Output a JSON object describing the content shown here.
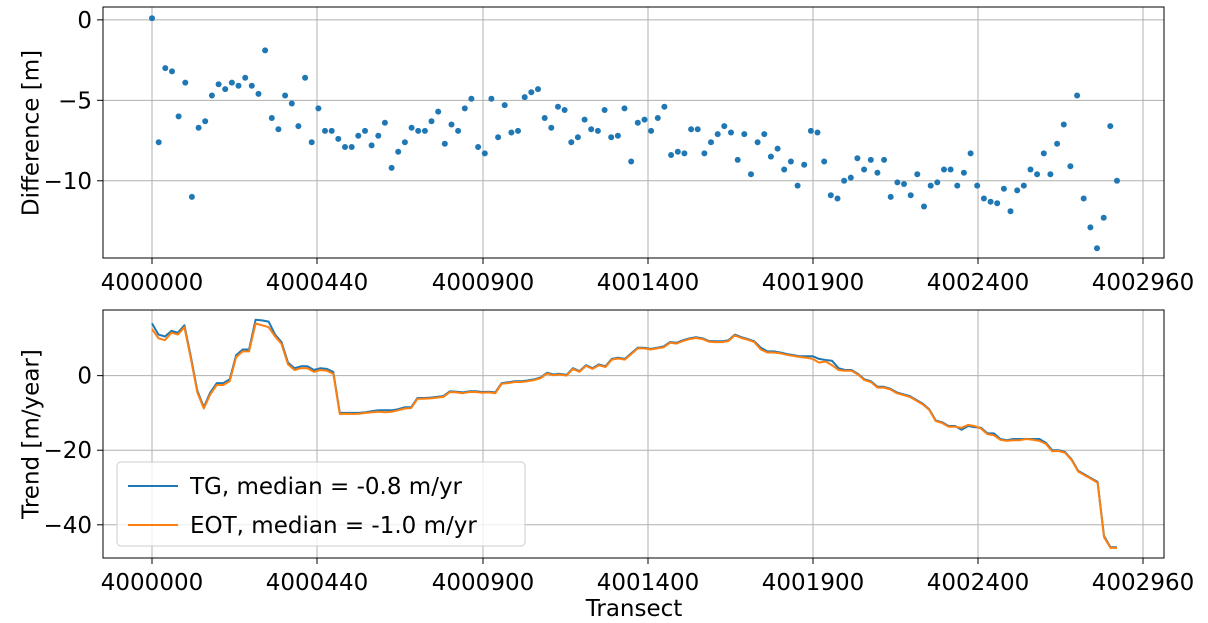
{
  "chart_data": [
    {
      "type": "scatter",
      "xlabel": "",
      "ylabel": "Difference [m]",
      "x_ticks": [
        "4000000",
        "4000440",
        "4000900",
        "4001400",
        "4001900",
        "4002400",
        "4002960"
      ],
      "y_ticks": [
        0,
        -5,
        -10
      ],
      "y_tick_labels": [
        "0",
        "−5",
        "−10"
      ],
      "xlim": [
        0,
        147
      ],
      "ylim": [
        -14.8,
        0.8
      ],
      "grid": true,
      "color": "#1f77b4",
      "series": [
        {
          "values": [
            0.1,
            -7.6,
            -3.0,
            -3.2,
            -6.0,
            -3.9,
            -11.0,
            -6.7,
            -6.3,
            -4.7,
            -4.0,
            -4.3,
            -3.9,
            -4.1,
            -3.6,
            -4.1,
            -4.6,
            -1.9,
            -6.1,
            -6.8,
            -4.7,
            -5.2,
            -6.6,
            -3.6,
            -7.6,
            -5.5,
            -6.9,
            -6.9,
            -7.4,
            -7.9,
            -7.9,
            -7.2,
            -6.9,
            -7.8,
            -7.2,
            -6.4,
            -9.2,
            -8.2,
            -7.6,
            -6.7,
            -6.9,
            -6.9,
            -6.3,
            -5.7,
            -7.7,
            -6.5,
            -6.9,
            -5.5,
            -4.9,
            -7.9,
            -8.3,
            -4.9,
            -7.3,
            -5.3,
            -7.0,
            -6.9,
            -4.8,
            -4.5,
            -4.3,
            -6.1,
            -6.7,
            -5.4,
            -5.6,
            -7.6,
            -7.3,
            -6.2,
            -6.8,
            -6.9,
            -5.6,
            -7.3,
            -7.2,
            -5.5,
            -8.8,
            -6.4,
            -6.2,
            -6.9,
            -6.1,
            -5.4,
            -8.4,
            -8.2,
            -8.3,
            -6.8,
            -6.8,
            -8.3,
            -7.6,
            -7.1,
            -6.6,
            -7.0,
            -8.7,
            -7.1,
            -9.6,
            -7.6,
            -7.1,
            -8.5,
            -8.0,
            -9.3,
            -8.8,
            -10.3,
            -9.0,
            -6.9,
            -7.0,
            -8.8,
            -10.9,
            -11.1,
            -10.0,
            -9.8,
            -8.6,
            -9.3,
            -8.7,
            -9.5,
            -8.7,
            -11.0,
            -10.1,
            -10.2,
            -10.9,
            -9.6,
            -11.6,
            -10.3,
            -10.1,
            -9.3,
            -9.3,
            -10.3,
            -9.5,
            -8.3,
            -10.3,
            -11.1,
            -11.3,
            -11.4,
            -10.5,
            -11.9,
            -10.6,
            -10.3,
            -9.3,
            -9.6,
            -8.3,
            -9.6,
            -7.7,
            -6.5,
            -9.1,
            -4.7,
            -11.1,
            -12.9,
            -14.2,
            -12.3,
            -6.6,
            -10.0
          ]
        }
      ]
    },
    {
      "type": "line",
      "xlabel": "Transect",
      "ylabel": "Trend [m/year]",
      "x_ticks": [
        "4000000",
        "4000440",
        "4000900",
        "4001400",
        "4001900",
        "4002400",
        "4002960"
      ],
      "y_ticks": [
        0,
        -20,
        -40
      ],
      "y_tick_labels": [
        "0",
        "−20",
        "−40"
      ],
      "xlim": [
        0,
        147
      ],
      "ylim": [
        -48.9,
        17.6
      ],
      "grid": true,
      "legend_position": "lower-left",
      "series": [
        {
          "name": "TG, median = -0.8 m/yr",
          "color": "#1f77b4",
          "values": [
            14.0,
            11.0,
            10.5,
            12.0,
            11.5,
            13.5,
            5.0,
            -4.0,
            -8.5,
            -4.5,
            -2.0,
            -2.0,
            -1.0,
            5.5,
            7.0,
            7.0,
            15.0,
            14.8,
            14.5,
            11.0,
            9.0,
            3.5,
            2.0,
            2.5,
            2.5,
            1.5,
            2.0,
            1.8,
            1.0,
            -10.0,
            -10.0,
            -10.0,
            -10.0,
            -9.8,
            -9.5,
            -9.3,
            -9.3,
            -9.3,
            -9.0,
            -8.5,
            -8.5,
            -6.0,
            -6.0,
            -5.9,
            -5.7,
            -5.5,
            -4.2,
            -4.3,
            -4.5,
            -4.2,
            -4.2,
            -4.4,
            -4.3,
            -4.5,
            -2.0,
            -1.8,
            -1.5,
            -1.5,
            -1.3,
            -1.0,
            -0.5,
            0.8,
            0.3,
            0.5,
            0.2,
            2.0,
            1.2,
            2.8,
            2.0,
            3.0,
            2.5,
            4.5,
            4.8,
            4.5,
            6.0,
            7.5,
            7.5,
            7.2,
            7.5,
            7.8,
            9.0,
            8.8,
            9.5,
            10.0,
            10.3,
            10.0,
            9.3,
            9.2,
            9.2,
            9.5,
            11.0,
            10.3,
            9.8,
            9.2,
            7.5,
            6.5,
            6.5,
            6.2,
            5.8,
            5.5,
            5.2,
            5.2,
            5.2,
            4.5,
            4.2,
            4.0,
            2.0,
            1.5,
            1.5,
            0.5,
            -1.0,
            -1.5,
            -3.0,
            -3.0,
            -3.5,
            -4.5,
            -5.0,
            -5.5,
            -6.5,
            -7.5,
            -9.0,
            -12.0,
            -12.5,
            -13.5,
            -13.5,
            -14.5,
            -13.5,
            -13.8,
            -14.0,
            -15.5,
            -15.5,
            -17.0,
            -17.3,
            -17.0,
            -17.0,
            -17.0,
            -17.0,
            -17.0,
            -18.0,
            -20.0,
            -20.0,
            -20.5,
            -22.5,
            -25.5,
            -26.5,
            -27.5,
            -28.5,
            -43.0,
            -46.0,
            -46.0
          ]
        },
        {
          "name": "EOT, median = -1.0 m/yr",
          "color": "#ff7f0e",
          "values": [
            12.5,
            10.0,
            9.5,
            11.5,
            11.0,
            13.0,
            4.5,
            -4.5,
            -8.8,
            -5.0,
            -2.5,
            -2.5,
            -1.5,
            5.0,
            6.5,
            6.5,
            14.0,
            13.5,
            13.0,
            10.5,
            8.5,
            3.0,
            1.5,
            2.0,
            2.0,
            1.0,
            1.5,
            1.3,
            0.5,
            -10.3,
            -10.2,
            -10.3,
            -10.2,
            -10.0,
            -9.8,
            -9.7,
            -9.8,
            -9.7,
            -9.3,
            -8.8,
            -8.7,
            -6.2,
            -6.2,
            -6.1,
            -5.9,
            -5.7,
            -4.4,
            -4.5,
            -4.7,
            -4.4,
            -4.4,
            -4.6,
            -4.5,
            -4.7,
            -2.2,
            -2.0,
            -1.7,
            -1.7,
            -1.5,
            -1.2,
            -0.7,
            0.6,
            0.1,
            0.3,
            0.0,
            1.8,
            1.0,
            2.6,
            1.8,
            2.8,
            2.3,
            4.3,
            4.6,
            4.3,
            5.8,
            7.3,
            7.3,
            7.0,
            7.3,
            7.6,
            8.8,
            8.6,
            9.3,
            9.8,
            10.1,
            9.8,
            9.1,
            9.0,
            9.0,
            9.3,
            10.8,
            10.1,
            9.6,
            9.0,
            7.0,
            6.2,
            6.2,
            6.0,
            5.6,
            5.3,
            5.0,
            4.8,
            4.5,
            3.5,
            3.8,
            2.8,
            1.5,
            1.3,
            1.3,
            0.3,
            -1.2,
            -1.7,
            -3.2,
            -3.2,
            -3.7,
            -4.7,
            -5.2,
            -5.7,
            -6.7,
            -7.7,
            -9.2,
            -12.2,
            -12.7,
            -13.7,
            -13.7,
            -14.0,
            -13.2,
            -13.5,
            -14.2,
            -15.7,
            -16.0,
            -17.2,
            -17.5,
            -17.3,
            -17.3,
            -17.0,
            -17.2,
            -17.5,
            -18.3,
            -20.3,
            -20.2,
            -20.7,
            -22.7,
            -25.7,
            -26.7,
            -27.7,
            -28.7,
            -43.3,
            -46.2,
            -46.2
          ]
        }
      ]
    }
  ]
}
